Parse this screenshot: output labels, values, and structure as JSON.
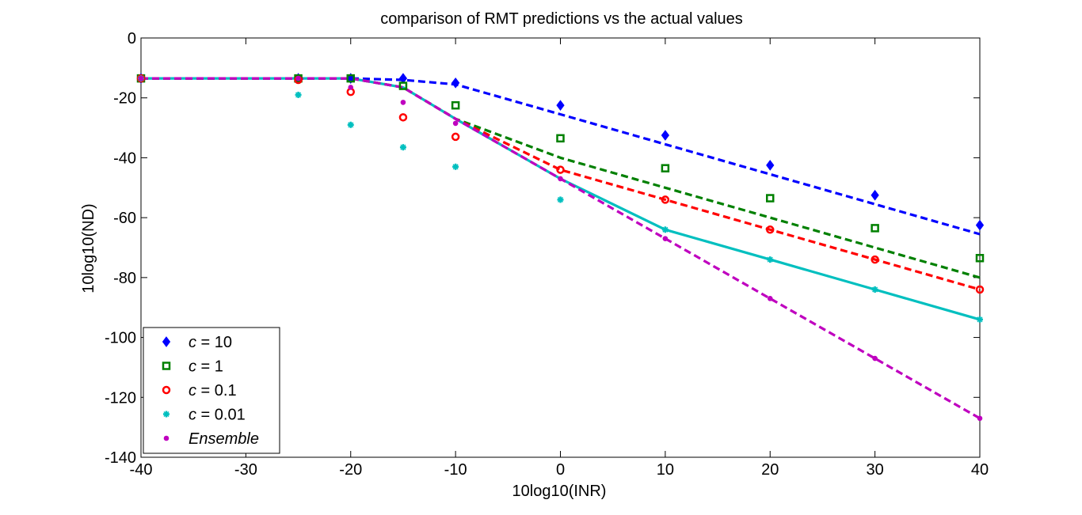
{
  "chart_data": {
    "type": "line",
    "title": "comparison of RMT predictions vs the actual values",
    "xlabel": "10log10(INR)",
    "ylabel": "10log10(ND)",
    "xlim": [
      -40,
      40
    ],
    "ylim": [
      -140,
      0
    ],
    "xticks": [
      -40,
      -30,
      -20,
      -10,
      0,
      10,
      20,
      30,
      40
    ],
    "yticks": [
      0,
      -20,
      -40,
      -60,
      -80,
      -100,
      -120,
      -140
    ],
    "grid": false,
    "legend_position": "bottom-left",
    "series": [
      {
        "name": "c = 10",
        "name_prefix": "c",
        "name_value": " = 10",
        "color": "#0000ff",
        "marker": "diamond",
        "points": [
          [
            -40,
            -13.5
          ],
          [
            -25,
            -13.5
          ],
          [
            -20,
            -13.5
          ],
          [
            -15,
            -13.5
          ],
          [
            -10,
            -15
          ],
          [
            0,
            -22.5
          ],
          [
            10,
            -32.5
          ],
          [
            20,
            -42.5
          ],
          [
            30,
            -52.5
          ],
          [
            40,
            -62.5
          ]
        ],
        "line": [
          [
            -40,
            -13.5
          ],
          [
            -20,
            -13.5
          ],
          [
            -15,
            -14
          ],
          [
            -10,
            -15.5
          ],
          [
            0,
            -25.5
          ],
          [
            10,
            -35.5
          ],
          [
            20,
            -45.5
          ],
          [
            30,
            -55.5
          ],
          [
            40,
            -65.5
          ]
        ],
        "line_style": "dashed"
      },
      {
        "name": "c = 1",
        "name_prefix": "c",
        "name_value": " = 1",
        "color": "#008000",
        "marker": "square",
        "points": [
          [
            -40,
            -13.5
          ],
          [
            -25,
            -13.5
          ],
          [
            -20,
            -13.5
          ],
          [
            -15,
            -16
          ],
          [
            -10,
            -22.5
          ],
          [
            0,
            -33.5
          ],
          [
            10,
            -43.5
          ],
          [
            20,
            -53.5
          ],
          [
            30,
            -63.5
          ],
          [
            40,
            -73.5
          ]
        ],
        "line": [
          [
            -40,
            -13.5
          ],
          [
            -20,
            -13.5
          ],
          [
            -15,
            -16.5
          ],
          [
            -10,
            -27
          ],
          [
            0,
            -40
          ],
          [
            10,
            -50
          ],
          [
            20,
            -60
          ],
          [
            30,
            -70
          ],
          [
            40,
            -80
          ]
        ],
        "line_style": "dashed"
      },
      {
        "name": "c = 0.1",
        "name_prefix": "c",
        "name_value": " = 0.1",
        "color": "#ff0000",
        "marker": "circle",
        "points": [
          [
            -40,
            -13.5
          ],
          [
            -25,
            -14
          ],
          [
            -20,
            -18
          ],
          [
            -15,
            -26.5
          ],
          [
            -10,
            -33
          ],
          [
            0,
            -44
          ],
          [
            10,
            -54
          ],
          [
            20,
            -64
          ],
          [
            30,
            -74
          ],
          [
            40,
            -84
          ]
        ],
        "line": [
          [
            -40,
            -13.5
          ],
          [
            -20,
            -13.5
          ],
          [
            -15,
            -16.5
          ],
          [
            -10,
            -27
          ],
          [
            0,
            -44
          ],
          [
            10,
            -54
          ],
          [
            20,
            -64
          ],
          [
            30,
            -74
          ],
          [
            40,
            -84
          ]
        ],
        "line_style": "dashed"
      },
      {
        "name": "c = 0.01",
        "name_prefix": "c",
        "name_value": " = 0.01",
        "color": "#00bfbf",
        "marker": "star",
        "points": [
          [
            -40,
            -13.5
          ],
          [
            -25,
            -19
          ],
          [
            -20,
            -29
          ],
          [
            -15,
            -36.5
          ],
          [
            -10,
            -43
          ],
          [
            0,
            -54
          ],
          [
            10,
            -64
          ],
          [
            20,
            -74
          ],
          [
            30,
            -84
          ],
          [
            40,
            -94
          ]
        ],
        "line": [
          [
            -40,
            -13.5
          ],
          [
            -20,
            -13.5
          ],
          [
            -15,
            -16.5
          ],
          [
            -10,
            -27
          ],
          [
            0,
            -47
          ],
          [
            10,
            -64
          ],
          [
            20,
            -74
          ],
          [
            30,
            -84
          ],
          [
            40,
            -94
          ]
        ],
        "line_style": "solid"
      },
      {
        "name": "Ensemble",
        "name_prefix": "Ensemble",
        "name_value": "",
        "color": "#bf00bf",
        "marker": "dot",
        "points": [
          [
            -40,
            -13.5
          ],
          [
            -25,
            -13.5
          ],
          [
            -20,
            -16.5
          ],
          [
            -15,
            -21.5
          ],
          [
            -10,
            -28.5
          ],
          [
            0,
            -47
          ],
          [
            10,
            -67
          ],
          [
            20,
            -87
          ],
          [
            30,
            -107
          ],
          [
            40,
            -127
          ]
        ],
        "line": [
          [
            -40,
            -13.5
          ],
          [
            -20,
            -13.5
          ],
          [
            -15,
            -16.5
          ],
          [
            -10,
            -27
          ],
          [
            0,
            -47
          ],
          [
            10,
            -67
          ],
          [
            20,
            -87
          ],
          [
            30,
            -107
          ],
          [
            40,
            -127
          ]
        ],
        "line_style": "dashed"
      }
    ]
  }
}
